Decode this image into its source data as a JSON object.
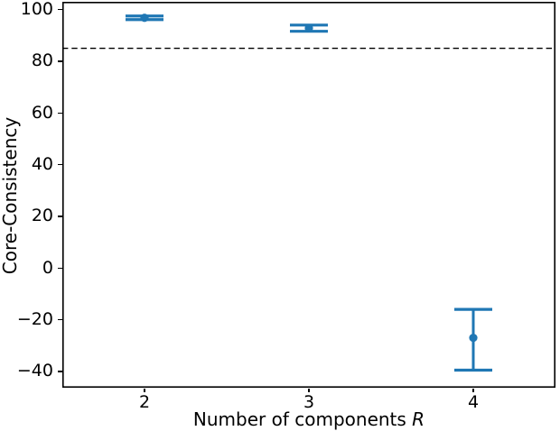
{
  "chart_data": {
    "type": "scatter",
    "marker_style": "errorbar-with-caps",
    "title": "",
    "xlabel_prefix": "Number of components ",
    "xlabel_var": "R",
    "ylabel": "Core-Consistency",
    "x": [
      2,
      3,
      4
    ],
    "y": [
      96.8,
      92.8,
      -27.0
    ],
    "yerr_low": [
      96.1,
      91.6,
      -39.5
    ],
    "yerr_high": [
      97.5,
      94.0,
      -16.0
    ],
    "threshold_line": {
      "y": 85,
      "style": "dashed",
      "color": "#000000"
    },
    "xticks": [
      2,
      3,
      4
    ],
    "xtick_labels": [
      "2",
      "3",
      "4"
    ],
    "yticks": [
      100,
      80,
      60,
      40,
      20,
      0,
      -20,
      -40
    ],
    "ytick_labels": [
      "100",
      "80",
      "60",
      "40",
      "20",
      "0",
      "−20",
      "−40"
    ],
    "xlim": [
      1.5,
      4.5
    ],
    "ylim": [
      -46.3,
      103.0
    ],
    "grid": false,
    "legend": null,
    "series_color": "#1f77b4",
    "axis_color": "#000000",
    "background_color": "#ffffff"
  }
}
